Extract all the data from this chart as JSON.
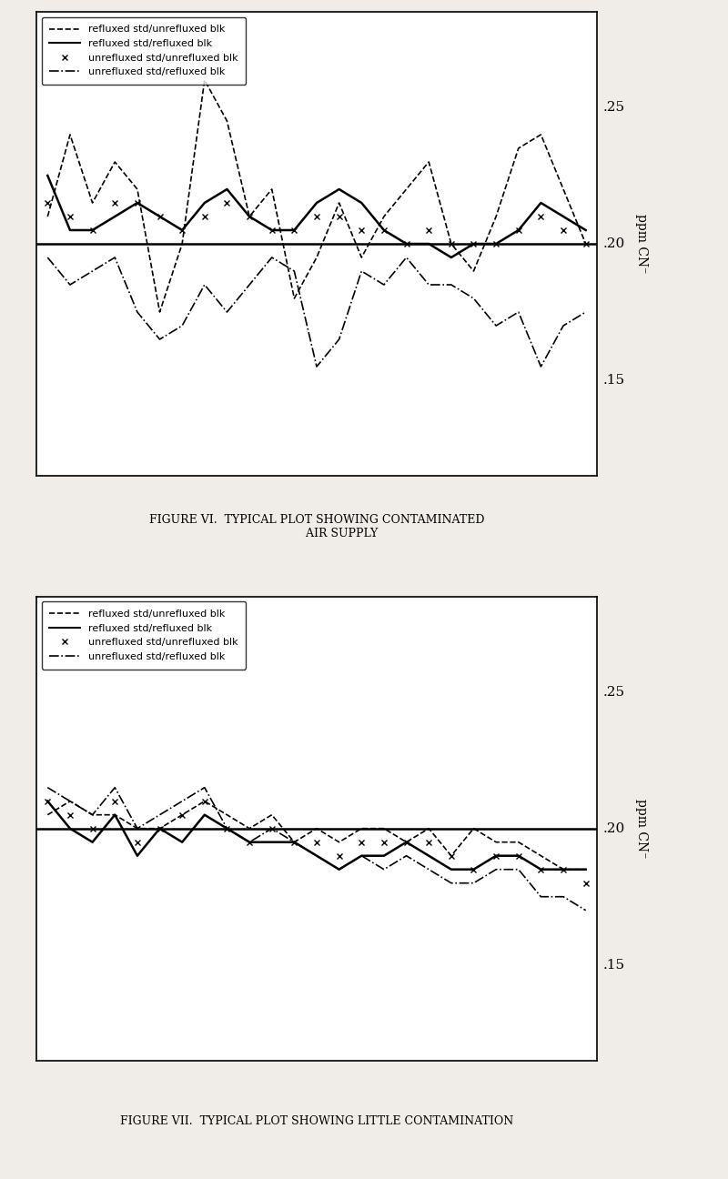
{
  "fig_width": 8.0,
  "fig_height": 12.96,
  "bg_color": "#f0ede8",
  "plot1": {
    "title": "FIGURE VI.  TYPICAL PLOT SHOWING CONTAMINATED\n              AIR SUPPLY",
    "ylim": [
      0.115,
      0.285
    ],
    "yticks": [
      0.15,
      0.2,
      0.25
    ],
    "yticklabels": [
      ".15",
      ".20",
      ".25"
    ],
    "ylabel": "ppm CN⁻",
    "horizontal_line": 0.2,
    "series": {
      "dashed": [
        0.21,
        0.24,
        0.215,
        0.23,
        0.22,
        0.175,
        0.2,
        0.26,
        0.245,
        0.21,
        0.22,
        0.18,
        0.195,
        0.215,
        0.195,
        0.21,
        0.22,
        0.23,
        0.2,
        0.19,
        0.21,
        0.235,
        0.24,
        0.22,
        0.2
      ],
      "solid": [
        0.225,
        0.205,
        0.205,
        0.21,
        0.215,
        0.21,
        0.205,
        0.215,
        0.22,
        0.21,
        0.205,
        0.205,
        0.215,
        0.22,
        0.215,
        0.205,
        0.2,
        0.2,
        0.195,
        0.2,
        0.2,
        0.205,
        0.215,
        0.21,
        0.205
      ],
      "xxx": [
        0.215,
        0.21,
        0.205,
        0.215,
        0.215,
        0.21,
        0.205,
        0.21,
        0.215,
        0.21,
        0.205,
        0.205,
        0.21,
        0.21,
        0.205,
        0.205,
        0.2,
        0.205,
        0.2,
        0.2,
        0.2,
        0.205,
        0.21,
        0.205,
        0.2
      ],
      "dashdot": [
        0.195,
        0.185,
        0.19,
        0.195,
        0.175,
        0.165,
        0.17,
        0.185,
        0.175,
        0.185,
        0.195,
        0.19,
        0.155,
        0.165,
        0.19,
        0.185,
        0.195,
        0.185,
        0.185,
        0.18,
        0.17,
        0.175,
        0.155,
        0.17,
        0.175
      ]
    }
  },
  "plot2": {
    "title": "FIGURE VII.  TYPICAL PLOT SHOWING LITTLE CONTAMINATION",
    "ylim": [
      0.115,
      0.285
    ],
    "yticks": [
      0.15,
      0.2,
      0.25
    ],
    "yticklabels": [
      ".15",
      ".20",
      ".25"
    ],
    "ylabel": "ppm CN⁻",
    "horizontal_line": 0.2,
    "series": {
      "dashed": [
        0.205,
        0.21,
        0.205,
        0.205,
        0.2,
        0.2,
        0.205,
        0.21,
        0.205,
        0.2,
        0.205,
        0.195,
        0.2,
        0.195,
        0.2,
        0.2,
        0.195,
        0.2,
        0.19,
        0.2,
        0.195,
        0.195,
        0.19,
        0.185,
        0.185
      ],
      "solid": [
        0.21,
        0.2,
        0.195,
        0.205,
        0.19,
        0.2,
        0.195,
        0.205,
        0.2,
        0.195,
        0.195,
        0.195,
        0.19,
        0.185,
        0.19,
        0.19,
        0.195,
        0.19,
        0.185,
        0.185,
        0.19,
        0.19,
        0.185,
        0.185,
        0.185
      ],
      "xxx": [
        0.21,
        0.205,
        0.2,
        0.21,
        0.195,
        0.2,
        0.205,
        0.21,
        0.2,
        0.195,
        0.2,
        0.195,
        0.195,
        0.19,
        0.195,
        0.195,
        0.195,
        0.195,
        0.19,
        0.185,
        0.19,
        0.19,
        0.185,
        0.185,
        0.18
      ],
      "dashdot": [
        0.215,
        0.21,
        0.205,
        0.215,
        0.2,
        0.205,
        0.21,
        0.215,
        0.2,
        0.195,
        0.2,
        0.195,
        0.19,
        0.185,
        0.19,
        0.185,
        0.19,
        0.185,
        0.18,
        0.18,
        0.185,
        0.185,
        0.175,
        0.175,
        0.17
      ]
    }
  },
  "legend_entries": [
    {
      "label": "refluxed std/unrefluxed blk",
      "style": "dashed"
    },
    {
      "label": "refluxed std/refluxed blk",
      "style": "solid"
    },
    {
      "label": "unrefluxed std/unrefluxed blk",
      "style": "xxx"
    },
    {
      "label": "unrefluxed std/refluxed blk",
      "style": "dashdot"
    }
  ]
}
